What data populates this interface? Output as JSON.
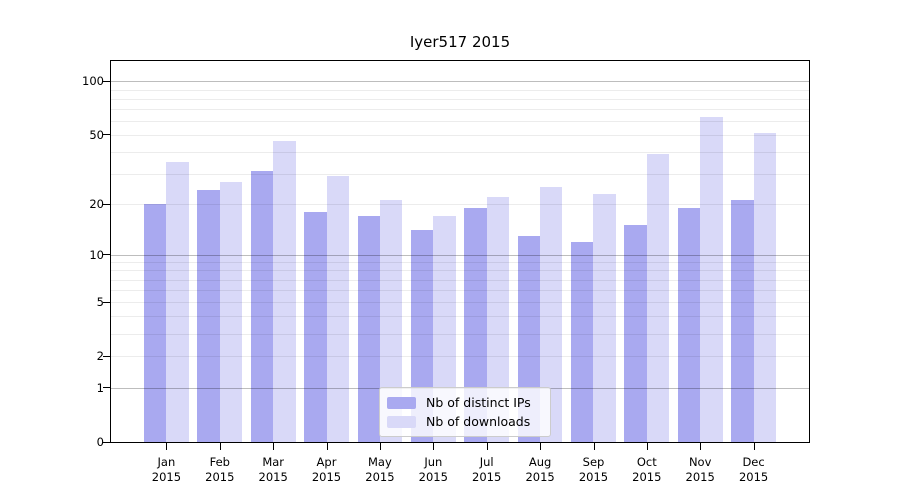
{
  "title": "Iyer517 2015",
  "legend": {
    "items": [
      {
        "label": "Nb of distinct IPs",
        "color": "#a9a9f0"
      },
      {
        "label": "Nb of downloads",
        "color": "#d9d9f8"
      }
    ]
  },
  "chart_data": {
    "type": "bar",
    "title": "Iyer517 2015",
    "months": [
      "Jan",
      "Feb",
      "Mar",
      "Apr",
      "May",
      "Jun",
      "Jul",
      "Aug",
      "Sep",
      "Oct",
      "Nov",
      "Dec"
    ],
    "year": "2015",
    "categories": [
      "Jan 2015",
      "Feb 2015",
      "Mar 2015",
      "Apr 2015",
      "May 2015",
      "Jun 2015",
      "Jul 2015",
      "Aug 2015",
      "Sep 2015",
      "Oct 2015",
      "Nov 2015",
      "Dec 2015"
    ],
    "series": [
      {
        "name": "Nb of distinct IPs",
        "color": "#a9a9f0",
        "values": [
          20,
          24,
          31,
          18,
          17,
          14,
          19,
          13,
          12,
          15,
          19,
          21
        ]
      },
      {
        "name": "Nb of downloads",
        "color": "#d9d9f8",
        "values": [
          35,
          27,
          46,
          29,
          21,
          17,
          22,
          25,
          23,
          39,
          63,
          51
        ]
      }
    ],
    "xlabel": "",
    "ylabel": "",
    "yscale": "log10(1+x)",
    "ylim": [
      0,
      130
    ],
    "yticks": [
      0,
      1,
      2,
      5,
      10,
      20,
      50,
      100
    ],
    "major_gridlines": [
      1,
      10,
      100
    ],
    "minor_gridlines": [
      2,
      3,
      4,
      5,
      6,
      7,
      8,
      9,
      20,
      30,
      40,
      50,
      60,
      70,
      80,
      90
    ],
    "grid": true,
    "legend_position": "lower center"
  }
}
